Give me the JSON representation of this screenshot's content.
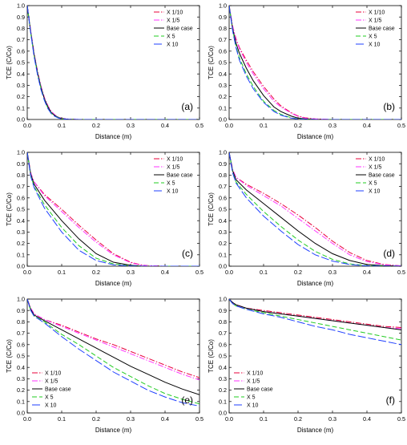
{
  "figure": {
    "series_names": [
      "X 1/10",
      "X 1/5",
      "Base case",
      "X 5",
      "X 10"
    ],
    "series_colors": [
      "#e8003a",
      "#ff33ff",
      "#000000",
      "#22cc22",
      "#1f3fff"
    ],
    "series_dash": [
      "dash-dot",
      "dash-dot",
      "solid",
      "dash",
      "long-dash"
    ]
  },
  "chart_data": [
    {
      "type": "line",
      "panel_label": "(a)",
      "xlabel": "Distance (m)",
      "ylabel": "TCE (C/Co)",
      "xlim": [
        0,
        0.5
      ],
      "ylim": [
        0,
        1.0
      ],
      "legend": "top-right",
      "xticks": [
        "0.0",
        "0.1",
        "0.2",
        "0.3",
        "0.4",
        "0.5"
      ],
      "yticks": [
        "0.0",
        "0.1",
        "0.2",
        "0.3",
        "0.4",
        "0.5",
        "0.6",
        "0.7",
        "0.8",
        "0.9",
        "1.0"
      ],
      "x": [
        0,
        0.01,
        0.02,
        0.03,
        0.04,
        0.05,
        0.06,
        0.07,
        0.08,
        0.09,
        0.1,
        0.12,
        0.15,
        0.2,
        0.3,
        0.5
      ],
      "series": [
        {
          "name": "X 1/10",
          "values": [
            1.0,
            0.78,
            0.58,
            0.42,
            0.29,
            0.19,
            0.12,
            0.07,
            0.04,
            0.02,
            0.01,
            0.003,
            0.0,
            0.0,
            0.0,
            0.0
          ]
        },
        {
          "name": "X 1/5",
          "values": [
            1.0,
            0.78,
            0.58,
            0.42,
            0.29,
            0.19,
            0.12,
            0.07,
            0.04,
            0.02,
            0.01,
            0.003,
            0.0,
            0.0,
            0.0,
            0.0
          ]
        },
        {
          "name": "Base case",
          "values": [
            1.0,
            0.77,
            0.57,
            0.41,
            0.28,
            0.18,
            0.11,
            0.06,
            0.035,
            0.018,
            0.008,
            0.002,
            0.0,
            0.0,
            0.0,
            0.0
          ]
        },
        {
          "name": "X 5",
          "values": [
            1.0,
            0.76,
            0.56,
            0.4,
            0.27,
            0.17,
            0.1,
            0.055,
            0.03,
            0.015,
            0.006,
            0.001,
            0.0,
            0.0,
            0.0,
            0.0
          ]
        },
        {
          "name": "X 10",
          "values": [
            1.0,
            0.76,
            0.55,
            0.39,
            0.26,
            0.165,
            0.095,
            0.05,
            0.028,
            0.013,
            0.005,
            0.001,
            0.0,
            0.0,
            0.0,
            0.0
          ]
        }
      ]
    },
    {
      "type": "line",
      "panel_label": "(b)",
      "xlabel": "Distance (m)",
      "ylabel": "TCE (C/Co)",
      "xlim": [
        0,
        0.5
      ],
      "ylim": [
        0,
        1.0
      ],
      "legend": "top-right",
      "xticks": [
        "0.0",
        "0.1",
        "0.2",
        "0.3",
        "0.4",
        "0.5"
      ],
      "yticks": [
        "0.0",
        "0.1",
        "0.2",
        "0.3",
        "0.4",
        "0.5",
        "0.6",
        "0.7",
        "0.8",
        "0.9",
        "1.0"
      ],
      "x": [
        0,
        0.01,
        0.02,
        0.03,
        0.05,
        0.07,
        0.1,
        0.13,
        0.15,
        0.18,
        0.2,
        0.22,
        0.25,
        0.3,
        0.5
      ],
      "series": [
        {
          "name": "X 1/10",
          "values": [
            1.0,
            0.82,
            0.71,
            0.63,
            0.52,
            0.42,
            0.29,
            0.18,
            0.12,
            0.06,
            0.03,
            0.015,
            0.005,
            0.0,
            0.0
          ]
        },
        {
          "name": "X 1/5",
          "values": [
            1.0,
            0.82,
            0.7,
            0.62,
            0.5,
            0.4,
            0.27,
            0.16,
            0.11,
            0.055,
            0.027,
            0.012,
            0.004,
            0.0,
            0.0
          ]
        },
        {
          "name": "Base case",
          "values": [
            1.0,
            0.8,
            0.67,
            0.58,
            0.45,
            0.34,
            0.21,
            0.11,
            0.07,
            0.03,
            0.012,
            0.005,
            0.001,
            0.0,
            0.0
          ]
        },
        {
          "name": "X 5",
          "values": [
            1.0,
            0.79,
            0.64,
            0.54,
            0.4,
            0.29,
            0.16,
            0.08,
            0.045,
            0.015,
            0.006,
            0.002,
            0.0,
            0.0,
            0.0
          ]
        },
        {
          "name": "X 10",
          "values": [
            1.0,
            0.78,
            0.63,
            0.52,
            0.38,
            0.27,
            0.15,
            0.07,
            0.038,
            0.012,
            0.004,
            0.001,
            0.0,
            0.0,
            0.0
          ]
        }
      ]
    },
    {
      "type": "line",
      "panel_label": "(c)",
      "xlabel": "Distance (m)",
      "ylabel": "TCE (C/Co)",
      "xlim": [
        0,
        0.5
      ],
      "ylim": [
        0,
        1.0
      ],
      "legend": "top-right",
      "xticks": [
        "0.0",
        "0.1",
        "0.2",
        "0.3",
        "0.4",
        "0.5"
      ],
      "yticks": [
        "0.0",
        "0.1",
        "0.2",
        "0.3",
        "0.4",
        "0.5",
        "0.6",
        "0.7",
        "0.8",
        "0.9",
        "1.0"
      ],
      "x": [
        0,
        0.01,
        0.02,
        0.05,
        0.1,
        0.15,
        0.2,
        0.25,
        0.3,
        0.33,
        0.35,
        0.4,
        0.5
      ],
      "series": [
        {
          "name": "X 1/10",
          "values": [
            1.0,
            0.82,
            0.74,
            0.63,
            0.5,
            0.36,
            0.23,
            0.11,
            0.035,
            0.012,
            0.005,
            0.0,
            0.0
          ]
        },
        {
          "name": "X 1/5",
          "values": [
            1.0,
            0.82,
            0.74,
            0.62,
            0.48,
            0.34,
            0.21,
            0.1,
            0.03,
            0.01,
            0.004,
            0.0,
            0.0
          ]
        },
        {
          "name": "Base case",
          "values": [
            1.0,
            0.81,
            0.72,
            0.58,
            0.4,
            0.24,
            0.11,
            0.035,
            0.008,
            0.002,
            0.0,
            0.0,
            0.0
          ]
        },
        {
          "name": "X 5",
          "values": [
            1.0,
            0.8,
            0.7,
            0.54,
            0.34,
            0.18,
            0.07,
            0.02,
            0.003,
            0.0,
            0.0,
            0.0,
            0.0
          ]
        },
        {
          "name": "X 10",
          "values": [
            1.0,
            0.79,
            0.69,
            0.51,
            0.3,
            0.14,
            0.05,
            0.012,
            0.002,
            0.0,
            0.0,
            0.0,
            0.0
          ]
        }
      ]
    },
    {
      "type": "line",
      "panel_label": "(d)",
      "xlabel": "Distance (m)",
      "ylabel": "TCE (C/Co)",
      "xlim": [
        0,
        0.5
      ],
      "ylim": [
        0,
        1.0
      ],
      "legend": "top-right",
      "xticks": [
        "0.0",
        "0.1",
        "0.2",
        "0.3",
        "0.4",
        "0.5"
      ],
      "yticks": [
        "0.0",
        "0.1",
        "0.2",
        "0.3",
        "0.4",
        "0.5",
        "0.6",
        "0.7",
        "0.8",
        "0.9",
        "1.0"
      ],
      "x": [
        0,
        0.01,
        0.02,
        0.05,
        0.1,
        0.15,
        0.2,
        0.25,
        0.3,
        0.35,
        0.4,
        0.45,
        0.5
      ],
      "series": [
        {
          "name": "X 1/10",
          "values": [
            1.0,
            0.85,
            0.78,
            0.72,
            0.64,
            0.55,
            0.45,
            0.34,
            0.22,
            0.12,
            0.05,
            0.015,
            0.003
          ]
        },
        {
          "name": "X 1/5",
          "values": [
            1.0,
            0.85,
            0.78,
            0.71,
            0.62,
            0.53,
            0.42,
            0.31,
            0.2,
            0.1,
            0.04,
            0.012,
            0.002
          ]
        },
        {
          "name": "Base case",
          "values": [
            1.0,
            0.84,
            0.76,
            0.67,
            0.55,
            0.43,
            0.31,
            0.2,
            0.11,
            0.05,
            0.015,
            0.004,
            0.0
          ]
        },
        {
          "name": "X 5",
          "values": [
            1.0,
            0.83,
            0.74,
            0.63,
            0.48,
            0.35,
            0.23,
            0.13,
            0.06,
            0.02,
            0.005,
            0.001,
            0.0
          ]
        },
        {
          "name": "X 10",
          "values": [
            1.0,
            0.82,
            0.73,
            0.6,
            0.44,
            0.31,
            0.19,
            0.1,
            0.045,
            0.015,
            0.003,
            0.0,
            0.0
          ]
        }
      ]
    },
    {
      "type": "line",
      "panel_label": "(e)",
      "xlabel": "Distance (m)",
      "ylabel": "TCE (C/Co)",
      "xlim": [
        0,
        0.5
      ],
      "ylim": [
        0,
        1.0
      ],
      "legend": "bottom-left",
      "xticks": [
        "0.0",
        "0.1",
        "0.2",
        "0.3",
        "0.4",
        "0.5"
      ],
      "yticks": [
        "0.0",
        "0.1",
        "0.2",
        "0.3",
        "0.4",
        "0.5",
        "0.6",
        "0.7",
        "0.8",
        "0.9",
        "1.0"
      ],
      "x": [
        0,
        0.01,
        0.02,
        0.05,
        0.1,
        0.15,
        0.2,
        0.25,
        0.3,
        0.35,
        0.4,
        0.45,
        0.5
      ],
      "series": [
        {
          "name": "X 1/10",
          "values": [
            1.0,
            0.92,
            0.87,
            0.82,
            0.77,
            0.71,
            0.65,
            0.6,
            0.54,
            0.48,
            0.42,
            0.36,
            0.31
          ]
        },
        {
          "name": "X 1/5",
          "values": [
            1.0,
            0.92,
            0.87,
            0.82,
            0.76,
            0.7,
            0.64,
            0.58,
            0.52,
            0.46,
            0.4,
            0.34,
            0.29
          ]
        },
        {
          "name": "Base case",
          "values": [
            1.0,
            0.91,
            0.86,
            0.81,
            0.73,
            0.65,
            0.57,
            0.49,
            0.41,
            0.34,
            0.27,
            0.21,
            0.16
          ]
        },
        {
          "name": "X 5",
          "values": [
            1.0,
            0.9,
            0.85,
            0.8,
            0.69,
            0.6,
            0.5,
            0.4,
            0.32,
            0.24,
            0.17,
            0.12,
            0.08
          ]
        },
        {
          "name": "X 10",
          "values": [
            1.0,
            0.9,
            0.85,
            0.79,
            0.67,
            0.56,
            0.46,
            0.36,
            0.28,
            0.2,
            0.14,
            0.09,
            0.06
          ]
        }
      ]
    },
    {
      "type": "line",
      "panel_label": "(f)",
      "xlabel": "Distance (m)",
      "ylabel": "TCE (C/Co)",
      "xlim": [
        0,
        0.5
      ],
      "ylim": [
        0,
        1.0
      ],
      "legend": "bottom-left",
      "xticks": [
        "0.0",
        "0.1",
        "0.2",
        "0.3",
        "0.4",
        "0.5"
      ],
      "yticks": [
        "0.0",
        "0.1",
        "0.2",
        "0.3",
        "0.4",
        "0.5",
        "0.6",
        "0.7",
        "0.8",
        "0.9",
        "1.0"
      ],
      "x": [
        0,
        0.01,
        0.02,
        0.05,
        0.1,
        0.15,
        0.2,
        0.25,
        0.3,
        0.35,
        0.4,
        0.45,
        0.5
      ],
      "series": [
        {
          "name": "X 1/10",
          "values": [
            1.0,
            0.97,
            0.95,
            0.92,
            0.9,
            0.88,
            0.86,
            0.84,
            0.82,
            0.8,
            0.78,
            0.76,
            0.75
          ]
        },
        {
          "name": "X 1/5",
          "values": [
            1.0,
            0.97,
            0.95,
            0.92,
            0.89,
            0.87,
            0.85,
            0.83,
            0.81,
            0.79,
            0.77,
            0.75,
            0.74
          ]
        },
        {
          "name": "Base case",
          "values": [
            1.0,
            0.97,
            0.95,
            0.92,
            0.89,
            0.87,
            0.85,
            0.83,
            0.81,
            0.79,
            0.77,
            0.75,
            0.73
          ]
        },
        {
          "name": "X 5",
          "values": [
            1.0,
            0.96,
            0.94,
            0.91,
            0.88,
            0.85,
            0.82,
            0.79,
            0.76,
            0.73,
            0.7,
            0.67,
            0.64
          ]
        },
        {
          "name": "X 10",
          "values": [
            1.0,
            0.96,
            0.94,
            0.91,
            0.87,
            0.84,
            0.8,
            0.76,
            0.73,
            0.69,
            0.66,
            0.63,
            0.6
          ]
        }
      ]
    }
  ]
}
